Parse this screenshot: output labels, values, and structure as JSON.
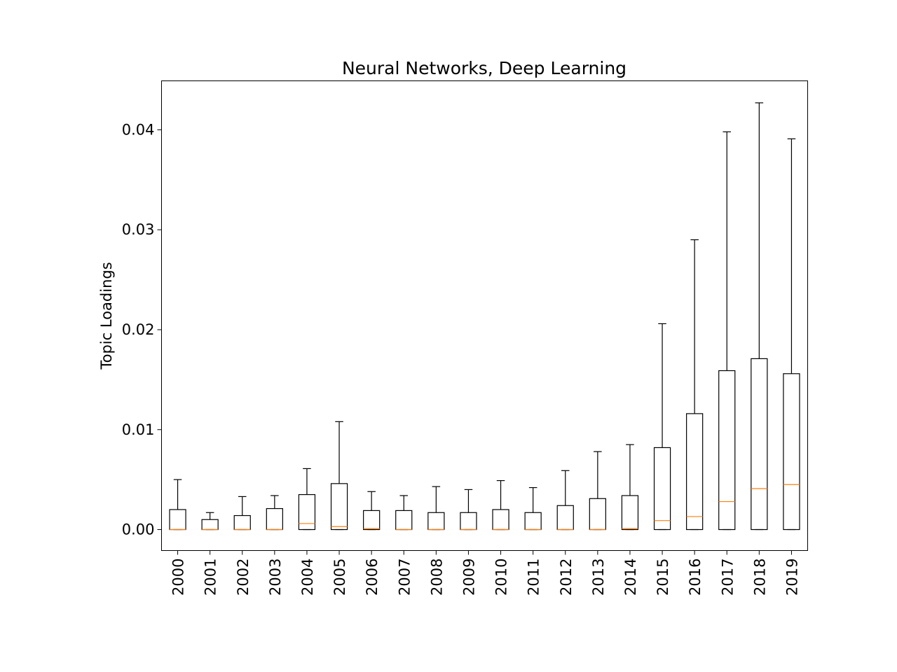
{
  "chart_data": {
    "type": "box",
    "title": "Neural Networks, Deep Learning",
    "xlabel": "",
    "ylabel": "Topic Loadings",
    "ylim": [
      -0.0021,
      0.0449
    ],
    "yticks": [
      0.0,
      0.01,
      0.02,
      0.03,
      0.04
    ],
    "ytick_labels": [
      "0.00",
      "0.01",
      "0.02",
      "0.03",
      "0.04"
    ],
    "grid": false,
    "categories": [
      "2000",
      "2001",
      "2002",
      "2003",
      "2004",
      "2005",
      "2006",
      "2007",
      "2008",
      "2009",
      "2010",
      "2011",
      "2012",
      "2013",
      "2014",
      "2015",
      "2016",
      "2017",
      "2018",
      "2019"
    ],
    "boxes": [
      {
        "min": 0,
        "q1": 0,
        "median": 0.0,
        "q3": 0.002,
        "max": 0.005
      },
      {
        "min": 0,
        "q1": 0,
        "median": 0.0,
        "q3": 0.001,
        "max": 0.0017
      },
      {
        "min": 0,
        "q1": 0,
        "median": 0.0,
        "q3": 0.0014,
        "max": 0.0033
      },
      {
        "min": 0,
        "q1": 0,
        "median": 0.0,
        "q3": 0.0021,
        "max": 0.0034
      },
      {
        "min": 0,
        "q1": 0,
        "median": 0.0006,
        "q3": 0.0035,
        "max": 0.0061
      },
      {
        "min": 0,
        "q1": 0,
        "median": 0.0003,
        "q3": 0.0046,
        "max": 0.0108
      },
      {
        "min": 0,
        "q1": 0,
        "median": 0.0001,
        "q3": 0.0019,
        "max": 0.0038
      },
      {
        "min": 0,
        "q1": 0,
        "median": 0.0,
        "q3": 0.0019,
        "max": 0.0034
      },
      {
        "min": 0,
        "q1": 0,
        "median": 0.0,
        "q3": 0.0017,
        "max": 0.0043
      },
      {
        "min": 0,
        "q1": 0,
        "median": 0.0,
        "q3": 0.0017,
        "max": 0.004
      },
      {
        "min": 0,
        "q1": 0,
        "median": 0.0,
        "q3": 0.002,
        "max": 0.0049
      },
      {
        "min": 0,
        "q1": 0,
        "median": 0.0,
        "q3": 0.0017,
        "max": 0.0042
      },
      {
        "min": 0,
        "q1": 0,
        "median": 0.0,
        "q3": 0.0024,
        "max": 0.0059
      },
      {
        "min": 0,
        "q1": 0,
        "median": 0.0,
        "q3": 0.0031,
        "max": 0.0078
      },
      {
        "min": 0,
        "q1": 0,
        "median": 0.0001,
        "q3": 0.0034,
        "max": 0.0085
      },
      {
        "min": 0,
        "q1": 0,
        "median": 0.0009,
        "q3": 0.0082,
        "max": 0.0206
      },
      {
        "min": 0,
        "q1": 0,
        "median": 0.0013,
        "q3": 0.0116,
        "max": 0.029
      },
      {
        "min": 0,
        "q1": 0,
        "median": 0.0028,
        "q3": 0.0159,
        "max": 0.0398
      },
      {
        "min": 0,
        "q1": 0,
        "median": 0.0041,
        "q3": 0.0171,
        "max": 0.0427
      },
      {
        "min": 0,
        "q1": 0,
        "median": 0.0045,
        "q3": 0.0156,
        "max": 0.0391
      }
    ],
    "colors": {
      "box": "#000000",
      "whisker": "#000000",
      "median": "#ff7f0e"
    }
  }
}
